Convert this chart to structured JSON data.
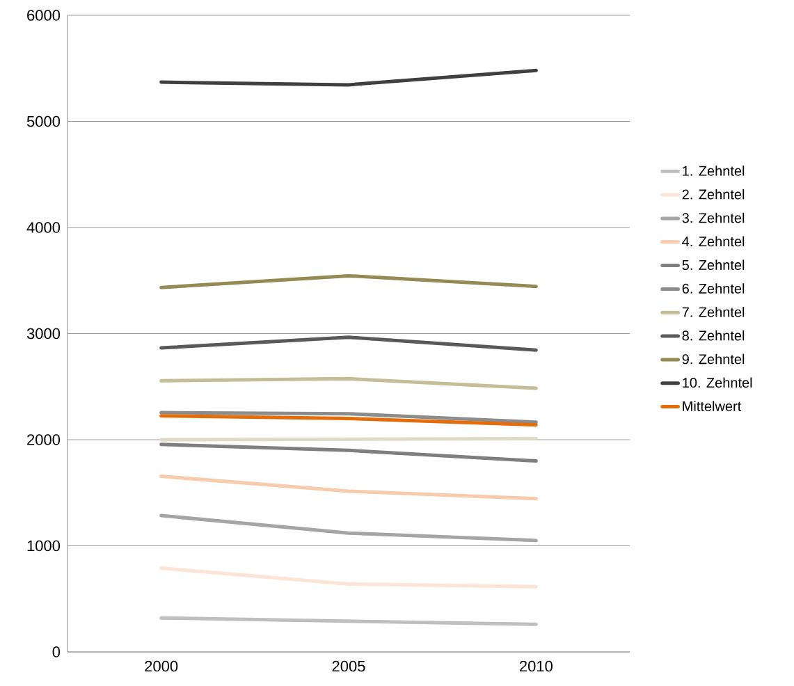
{
  "chart_data": {
    "type": "line",
    "categories": [
      "2000",
      "2005",
      "2010"
    ],
    "ylim": [
      0,
      6000
    ],
    "yticks": [
      0,
      1000,
      2000,
      3000,
      4000,
      5000,
      6000
    ],
    "grid": "y",
    "legend": "right",
    "marker": "none",
    "line_style": "solid",
    "series": [
      {
        "name": "1. Zehntel",
        "color": "#bfbfbf",
        "values": [
          320,
          290,
          260
        ]
      },
      {
        "name": "2. Zehntel",
        "color": "#fce4d6",
        "values": [
          790,
          640,
          615
        ]
      },
      {
        "name": "3. Zehntel",
        "color": "#a5a5a5",
        "values": [
          1285,
          1120,
          1050
        ]
      },
      {
        "name": "4. Zehntel",
        "color": "#f8cbad",
        "values": [
          1655,
          1515,
          1445
        ]
      },
      {
        "name": "5. Zehntel",
        "color": "#7f7f7f",
        "values": [
          1955,
          1900,
          1800
        ]
      },
      {
        "name": "6. Zehntel",
        "color": "#8c8c8c",
        "values": [
          2255,
          2245,
          2165
        ]
      },
      {
        "name": "7. Zehntel",
        "color": "#c4bd97",
        "values": [
          2555,
          2575,
          2485
        ]
      },
      {
        "name": "8. Zehntel",
        "color": "#595959",
        "values": [
          2865,
          2965,
          2845
        ]
      },
      {
        "name": "9. Zehntel",
        "color": "#948a54",
        "values": [
          3435,
          3545,
          3445
        ]
      },
      {
        "name": "10. Zehntel",
        "color": "#404040",
        "values": [
          5370,
          5345,
          5480
        ]
      },
      {
        "name": "Mittelwert",
        "color": "#e46c0a",
        "values": [
          2225,
          2200,
          2140
        ]
      },
      {
        "color": "#dddac6",
        "values": [
          2000,
          2005,
          2010
        ]
      }
    ]
  }
}
